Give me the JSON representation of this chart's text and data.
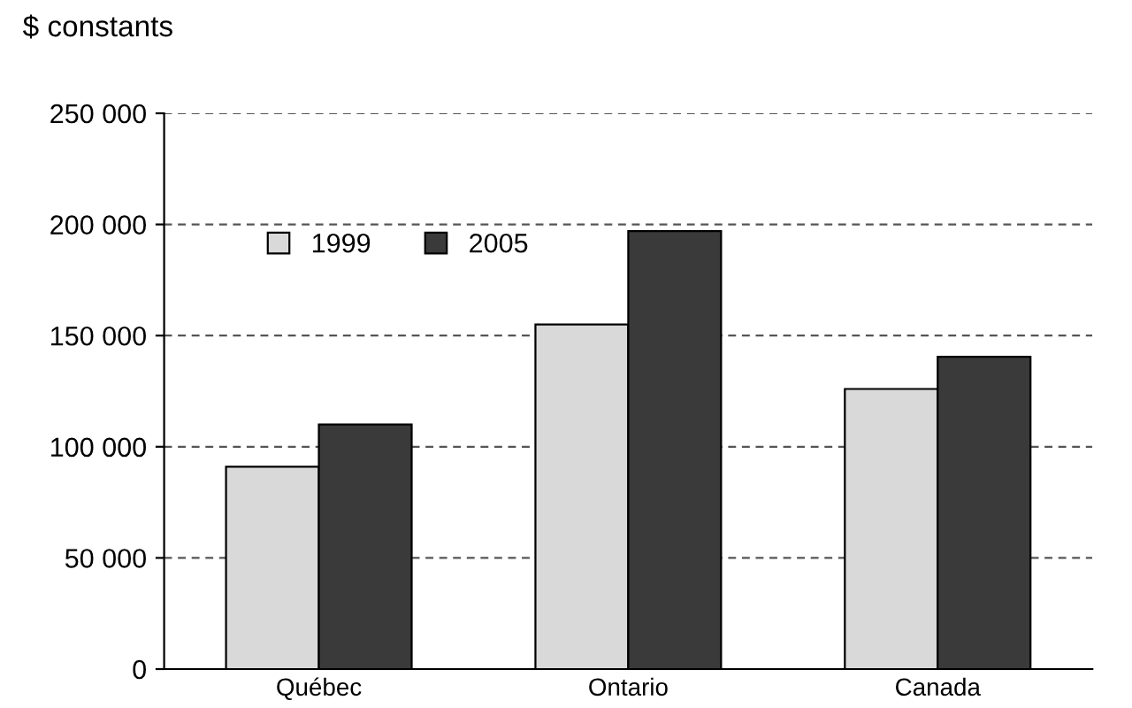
{
  "chart_data": {
    "type": "bar",
    "ylabel": "$ constants",
    "categories": [
      "Québec",
      "Ontario",
      "Canada"
    ],
    "series": [
      {
        "name": "1999",
        "color": "#d9d9d9",
        "values": [
          91000,
          155000,
          126000
        ]
      },
      {
        "name": "2005",
        "color": "#3a3a3a",
        "values": [
          110000,
          197000,
          140500
        ]
      }
    ],
    "ylim": [
      0,
      250000
    ],
    "yticks": [
      {
        "value": 0,
        "label": "0"
      },
      {
        "value": 50000,
        "label": "50 000"
      },
      {
        "value": 100000,
        "label": "100 000"
      },
      {
        "value": 150000,
        "label": "150 000"
      },
      {
        "value": 200000,
        "label": "200 000"
      },
      {
        "value": 250000,
        "label": "250 000"
      }
    ],
    "grid": "y",
    "legend": "top left"
  }
}
